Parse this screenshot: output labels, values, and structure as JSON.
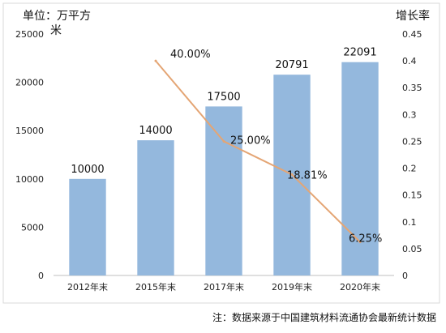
{
  "chart_data": {
    "type": "bar",
    "categories": [
      "2012年末",
      "2015年末",
      "2017年末",
      "2019年末",
      "2020年末"
    ],
    "series": [
      {
        "type": "bar",
        "values": [
          10000,
          14000,
          17500,
          20791,
          22091
        ],
        "labels": [
          "10000",
          "14000",
          "17500",
          "20791",
          "22091"
        ],
        "axis": "left",
        "color": "#94b8dd"
      },
      {
        "type": "line",
        "values": [
          null,
          0.4,
          0.25,
          0.1881,
          0.0625
        ],
        "labels": [
          "",
          "40.00%",
          "25.00%",
          "18.81%",
          "6.25%"
        ],
        "axis": "right",
        "color": "#e4a574"
      }
    ],
    "ylabel_line1": "单位：万平方",
    "ylabel_line2": "米",
    "y2label": "增长率",
    "ylim": [
      0,
      25000
    ],
    "yticks": [
      0,
      5000,
      10000,
      15000,
      20000,
      25000
    ],
    "y2lim": [
      0,
      0.45
    ],
    "y2ticks": [
      "0",
      "0.05",
      "0.1",
      "0.15",
      "0.2",
      "0.25",
      "0.3",
      "0.35",
      "0.4",
      "0.45"
    ],
    "grid": false,
    "legend": "none",
    "note": "注：数据来源于中国建筑材料流通协会最新统计数据"
  }
}
